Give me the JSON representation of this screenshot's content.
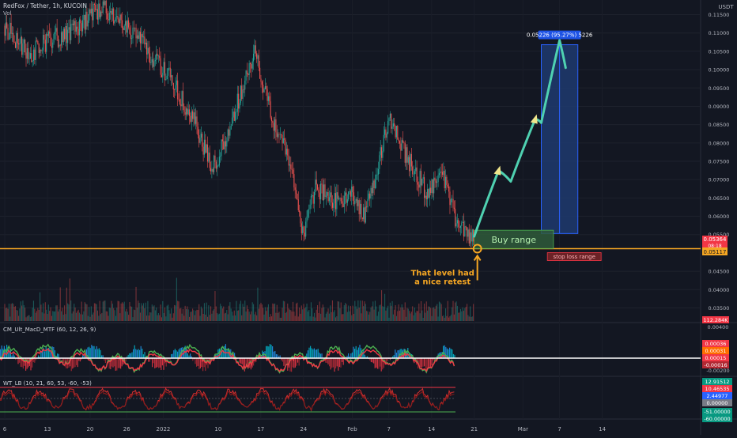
{
  "header": {
    "symbol_title": "RedFox / Tether, 1h, KUCOIN",
    "volume_label": "Vol"
  },
  "price_axis": {
    "currency_label": "USDT",
    "tick_labels": [
      "0.11500",
      "0.11000",
      "0.10500",
      "0.10000",
      "0.09500",
      "0.09000",
      "0.08500",
      "0.08000",
      "0.07500",
      "0.07000",
      "0.06500",
      "0.06000",
      "0.05500",
      "0.04500",
      "0.04000",
      "0.03500"
    ],
    "price_badge_top": "0.05364",
    "price_badge_countdown": "08:18",
    "price_badge_level": "0.05117",
    "volume_badge": "112.284K"
  },
  "time_axis": {
    "tick_labels": [
      "6",
      "13",
      "20",
      "26",
      "2022",
      "10",
      "17",
      "24",
      "Feb",
      "7",
      "14",
      "21",
      "Mar",
      "7",
      "14"
    ]
  },
  "annotations": {
    "buy_range_label": "Buy range",
    "stop_loss_label": "stop loss range",
    "target_label": "0.05226 (95.27%) 5226",
    "retest_line1": "That level had",
    "retest_line2": "a nice retest"
  },
  "indicator_macd": {
    "title": "CM_Ult_MacD_MTF (60, 12, 26, 9)",
    "axis_labels": [
      "0.00400",
      "-0.00200"
    ],
    "badges": [
      {
        "text": "0.00036",
        "color": "#f23645"
      },
      {
        "text": "0.00031",
        "color": "#ff6d00"
      },
      {
        "text": "0.00015",
        "color": "#f23645"
      },
      {
        "text": "-0.00016",
        "color": "#b22833"
      }
    ]
  },
  "indicator_wt": {
    "title": "WT_LB (10, 21, 60, 53, -60, -53)",
    "badges": [
      {
        "text": "12.91512",
        "color": "#089981"
      },
      {
        "text": "10.46535",
        "color": "#f23645"
      },
      {
        "text": "2.44977",
        "color": "#2962ff"
      },
      {
        "text": "0.00000",
        "color": "#787b86"
      },
      {
        "text": "-51.00000",
        "color": "#089981"
      },
      {
        "text": "-60.00000",
        "color": "#089981"
      }
    ]
  },
  "colors": {
    "background": "#131722",
    "up": "#26a69a",
    "down": "#ef5350",
    "support_line": "#f5a623",
    "projection": "#4fd1b1",
    "target_box": "#1e3a6e",
    "buy_box": "#2f5a3a",
    "stop_box": "#6b2226"
  },
  "chart_data": {
    "type": "candlestick",
    "title": "RedFox / Tether, 1h, KUCOIN",
    "ylim": [
      0.031,
      0.119
    ],
    "x_ticks": [
      "6",
      "13",
      "20",
      "26",
      "2022",
      "10",
      "17",
      "24",
      "Feb",
      "7",
      "14",
      "21",
      "Mar",
      "7",
      "14"
    ],
    "price_path": [
      {
        "x": "Dec 6",
        "y": 0.112
      },
      {
        "x": "Dec 10",
        "y": 0.104
      },
      {
        "x": "Dec 13",
        "y": 0.108
      },
      {
        "x": "Dec 17",
        "y": 0.11
      },
      {
        "x": "Dec 20",
        "y": 0.115
      },
      {
        "x": "Dec 22",
        "y": 0.117
      },
      {
        "x": "Dec 26",
        "y": 0.112
      },
      {
        "x": "Dec 30",
        "y": 0.104
      },
      {
        "x": "Jan 2",
        "y": 0.098
      },
      {
        "x": "Jan 6",
        "y": 0.086
      },
      {
        "x": "Jan 9",
        "y": 0.073
      },
      {
        "x": "Jan 11",
        "y": 0.08
      },
      {
        "x": "Jan 14",
        "y": 0.095
      },
      {
        "x": "Jan 16",
        "y": 0.106
      },
      {
        "x": "Jan 19",
        "y": 0.085
      },
      {
        "x": "Jan 22",
        "y": 0.074
      },
      {
        "x": "Jan 24",
        "y": 0.054
      },
      {
        "x": "Jan 26",
        "y": 0.068
      },
      {
        "x": "Jan 29",
        "y": 0.064
      },
      {
        "x": "Feb 1",
        "y": 0.066
      },
      {
        "x": "Feb 3",
        "y": 0.061
      },
      {
        "x": "Feb 5",
        "y": 0.071
      },
      {
        "x": "Feb 7",
        "y": 0.088
      },
      {
        "x": "Feb 10",
        "y": 0.076
      },
      {
        "x": "Feb 13",
        "y": 0.067
      },
      {
        "x": "Feb 16",
        "y": 0.07
      },
      {
        "x": "Feb 18",
        "y": 0.059
      },
      {
        "x": "Feb 21",
        "y": 0.0536
      }
    ],
    "support_level": 0.05117,
    "buy_range": [
      0.0512,
      0.0562
    ],
    "projection_path": [
      {
        "x": "Feb 21",
        "y": 0.0545
      },
      {
        "x": "Feb 25",
        "y": 0.0725
      },
      {
        "x": "Feb 27",
        "y": 0.0695
      },
      {
        "x": "Mar 3",
        "y": 0.0865
      },
      {
        "x": "Mar 4",
        "y": 0.0855
      },
      {
        "x": "Mar 7",
        "y": 0.108
      },
      {
        "x": "Mar 8",
        "y": 0.1005
      }
    ],
    "target_box": {
      "from": "Mar 4",
      "to": "Mar 10",
      "low": 0.0553,
      "high": 0.1068
    }
  }
}
